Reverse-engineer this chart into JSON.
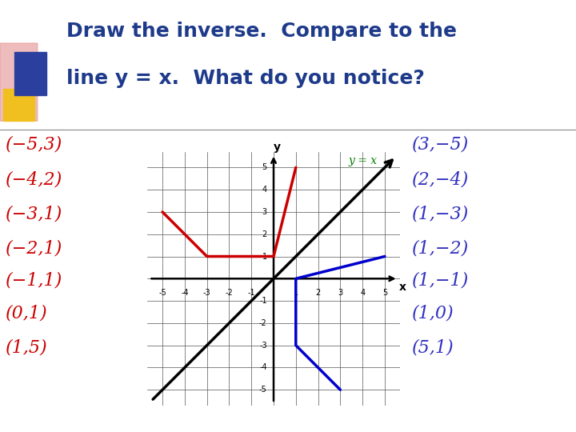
{
  "title_line1": "Draw the inverse.  Compare to the",
  "title_line2": "line y = x.  What do you notice?",
  "title_color": "#1e3a8a",
  "title_fontsize": 18,
  "red_x": [
    -5,
    -4,
    -3,
    -2,
    -1,
    0,
    1
  ],
  "red_y": [
    3,
    2,
    1,
    1,
    1,
    1,
    5
  ],
  "blue_x": [
    3,
    2,
    1,
    1,
    1,
    1,
    5
  ],
  "blue_y": [
    -5,
    -4,
    -3,
    -2,
    -1,
    0,
    1
  ],
  "red_color": "#cc0000",
  "blue_color": "#0000cc",
  "yx_label_color": "#008000",
  "yx_label": "y = x",
  "right_label_color": "#3030c0",
  "left_labels": [
    "(−5,3)",
    "(−4,2)",
    "(−3,1)",
    "(−2,1)",
    "(−1,1)",
    "(0,1)",
    "(1,5)"
  ],
  "right_labels": [
    "(3,−5)",
    "(2,−4)",
    "(1,−3)",
    "(1,−2)",
    "(1,−1)",
    "(1,0)",
    "(5,1)"
  ],
  "grid_range": [
    -5,
    5
  ],
  "background_color": "#ffffff",
  "label_fontsize": 16
}
